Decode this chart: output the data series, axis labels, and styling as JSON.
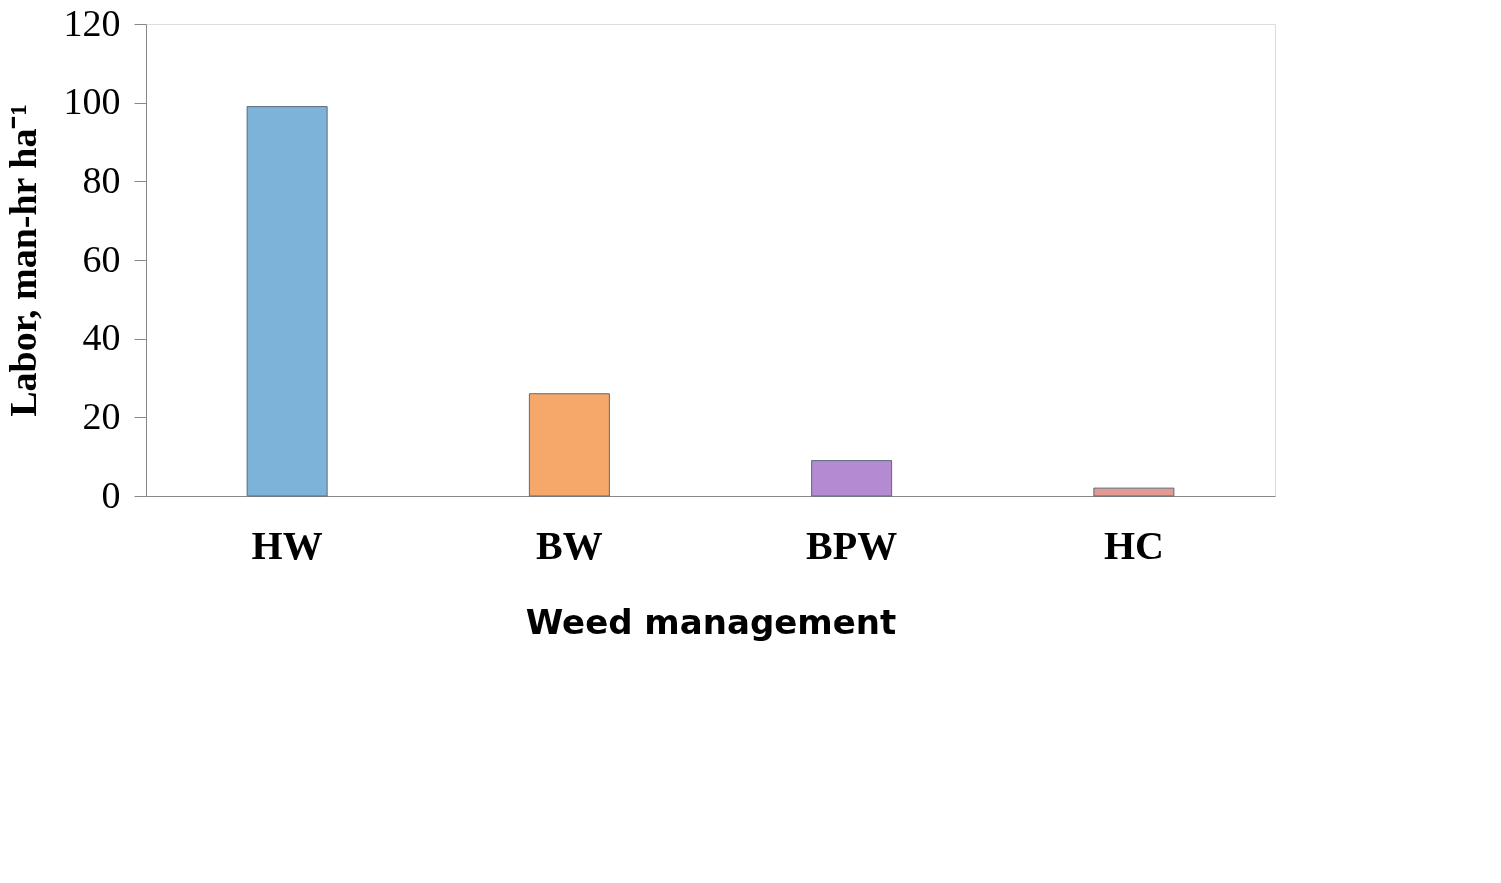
{
  "chart_data": {
    "type": "bar",
    "xlabel": "Weed management",
    "ylabel": "Labor, man-hr ha⁻¹",
    "categories": [
      "HW",
      "BW",
      "BPW",
      "HC"
    ],
    "values": [
      99,
      26,
      9,
      2
    ],
    "colors": [
      "#7eb3d9",
      "#f6a76a",
      "#b48ad3",
      "#e39a94"
    ],
    "ylim": [
      0,
      120
    ],
    "yticks": [
      0,
      20,
      40,
      60,
      80,
      100,
      120
    ],
    "grid": false
  }
}
